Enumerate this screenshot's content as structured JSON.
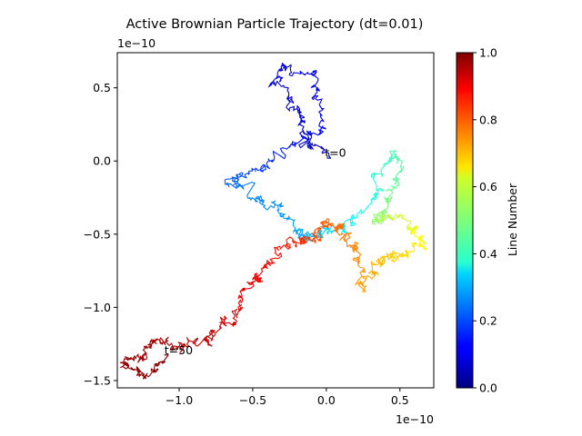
{
  "chart_data": {
    "type": "line",
    "title": "Active Brownian Particle Trajectory (dt=0.01)",
    "xlabel": "",
    "ylabel": "",
    "x_offset_text": "1e−10",
    "y_offset_text": "1e−10",
    "xlim": [
      -1.42,
      0.73
    ],
    "ylim": [
      -1.55,
      0.74
    ],
    "x_ticks": [
      -1.0,
      -0.5,
      0.0,
      0.5
    ],
    "x_tick_labels": [
      "−1.0",
      "−0.5",
      "0.0",
      "0.5"
    ],
    "y_ticks": [
      -1.5,
      -1.0,
      -0.5,
      0.0,
      0.5
    ],
    "y_tick_labels": [
      "−1.5",
      "−1.0",
      "−0.5",
      "0.0",
      "0.5"
    ],
    "grid": false,
    "colormap": "jet",
    "colorbar": {
      "label": "Line Number",
      "range": [
        0.0,
        1.0
      ],
      "ticks": [
        0.0,
        0.2,
        0.4,
        0.6,
        0.8,
        1.0
      ],
      "tick_labels": [
        "0.0",
        "0.2",
        "0.4",
        "0.6",
        "0.8",
        "1.0"
      ]
    },
    "trajectory_anchor_points": {
      "x": [
        0.0,
        -0.14,
        -0.18,
        -0.35,
        -0.28,
        -0.08,
        -0.01,
        -0.22,
        -0.4,
        -0.68,
        -0.52,
        -0.34,
        -0.18,
        -0.1,
        0.02,
        0.2,
        0.36,
        0.44,
        0.48,
        0.4,
        0.3,
        0.42,
        0.58,
        0.66,
        0.56,
        0.42,
        0.32,
        0.26,
        0.2,
        0.12,
        0.02,
        -0.06,
        -0.18,
        -0.3,
        -0.42,
        -0.52,
        -0.6,
        -0.72,
        -0.82,
        -1.0,
        -1.16,
        -1.26,
        -1.38,
        -1.22,
        -1.1
      ],
      "y": [
        0.02,
        0.12,
        0.32,
        0.5,
        0.64,
        0.58,
        0.22,
        0.12,
        -0.04,
        -0.12,
        -0.22,
        -0.3,
        -0.48,
        -0.52,
        -0.48,
        -0.4,
        -0.18,
        0.08,
        -0.12,
        -0.3,
        -0.42,
        -0.38,
        -0.46,
        -0.54,
        -0.62,
        -0.66,
        -0.72,
        -0.88,
        -0.62,
        -0.5,
        -0.44,
        -0.5,
        -0.54,
        -0.58,
        -0.76,
        -0.86,
        -1.04,
        -1.12,
        -1.22,
        -1.28,
        -1.22,
        -1.34,
        -1.38,
        -1.48,
        -1.32
      ],
      "color_value": [
        0.06,
        0.07,
        0.08,
        0.09,
        0.1,
        0.11,
        0.12,
        0.15,
        0.18,
        0.22,
        0.25,
        0.27,
        0.29,
        0.31,
        0.34,
        0.38,
        0.42,
        0.45,
        0.47,
        0.5,
        0.52,
        0.56,
        0.6,
        0.63,
        0.66,
        0.68,
        0.7,
        0.72,
        0.74,
        0.76,
        0.78,
        0.8,
        0.83,
        0.86,
        0.88,
        0.9,
        0.91,
        0.92,
        0.93,
        0.95,
        0.96,
        0.97,
        0.98,
        0.99,
        1.0
      ]
    },
    "annotations": [
      {
        "text": "t=0",
        "x": -0.01,
        "y": 0.03
      },
      {
        "text": "t=50",
        "x": -1.1,
        "y": -1.32
      }
    ]
  }
}
